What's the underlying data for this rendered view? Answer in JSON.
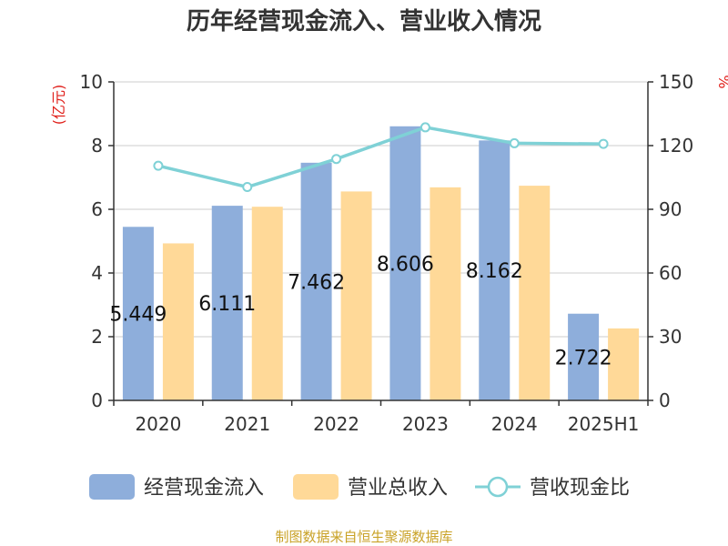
{
  "chart_data": {
    "type": "bar",
    "title": "历年经营现金流入、营业收入情况",
    "left_unit": "(亿元)",
    "right_unit": "%",
    "categories": [
      "2020",
      "2021",
      "2022",
      "2023",
      "2024",
      "2025H1"
    ],
    "ylim_left": [
      0,
      10
    ],
    "yticks_left": [
      0,
      2,
      4,
      6,
      8,
      10
    ],
    "ylim_right": [
      0,
      150
    ],
    "yticks_right": [
      0,
      30,
      60,
      90,
      120,
      150
    ],
    "series": [
      {
        "name": "经营现金流入",
        "kind": "bar",
        "axis": "left",
        "color": "#8eaedb",
        "values": [
          5.449,
          6.111,
          7.462,
          8.606,
          8.162,
          2.722
        ],
        "labels": [
          "5.449",
          "6.111",
          "7.462",
          "8.606",
          "8.162",
          "2.722"
        ]
      },
      {
        "name": "营业总收入",
        "kind": "bar",
        "axis": "left",
        "color": "#ffd998",
        "values": [
          4.93,
          6.08,
          6.56,
          6.69,
          6.74,
          2.26
        ]
      },
      {
        "name": "营收现金比",
        "kind": "line",
        "axis": "right",
        "color": "#7fd1d6",
        "values": [
          110.5,
          100.5,
          113.7,
          128.6,
          121.1,
          120.8
        ]
      }
    ],
    "grid": true,
    "legend_position": "bottom"
  },
  "source": "制图数据来自恒生聚源数据库"
}
